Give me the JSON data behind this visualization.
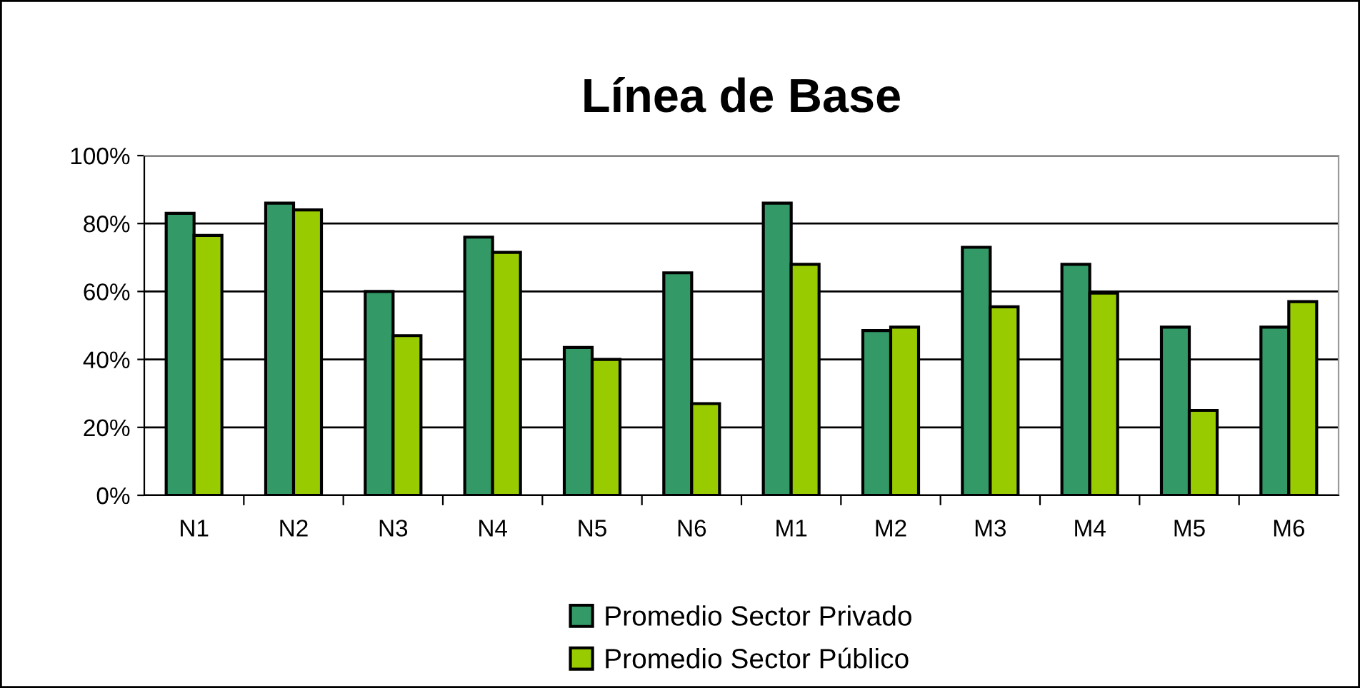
{
  "chart_data": {
    "type": "bar",
    "title": "Línea de Base",
    "categories": [
      "N1",
      "N2",
      "N3",
      "N4",
      "N5",
      "N6",
      "M1",
      "M2",
      "M3",
      "M4",
      "M5",
      "M6"
    ],
    "series": [
      {
        "name": "Promedio Sector Privado",
        "color": "#339966",
        "values": [
          83,
          86,
          60,
          76,
          43.5,
          65.5,
          86,
          48.5,
          73,
          68,
          49.5,
          49.5
        ]
      },
      {
        "name": "Promedio Sector Público",
        "color": "#99cc00",
        "values": [
          76.5,
          84,
          47,
          71.5,
          40,
          27,
          68,
          49.5,
          55.5,
          59.5,
          25,
          57
        ]
      }
    ],
    "ylim": [
      0,
      100
    ],
    "yticks": [
      {
        "value": 0,
        "label": "0%"
      },
      {
        "value": 20,
        "label": "20%"
      },
      {
        "value": 40,
        "label": "40%"
      },
      {
        "value": 60,
        "label": "60%"
      },
      {
        "value": 80,
        "label": "80%"
      },
      {
        "value": 100,
        "label": "100%"
      }
    ],
    "grid": "y",
    "legend": "bottom"
  }
}
